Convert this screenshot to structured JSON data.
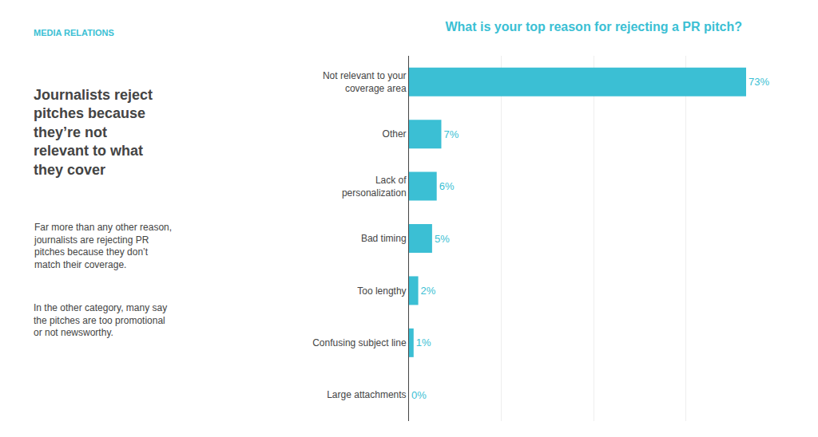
{
  "chart_data": {
    "type": "bar",
    "orientation": "horizontal",
    "title": "What is your top reason for rejecting a PR pitch?",
    "categories": [
      "Not relevant to your\ncoverage area",
      "Other",
      "Lack of\npersonalization",
      "Bad timing",
      "Too lengthy",
      "Confusing subject line",
      "Large attachments"
    ],
    "values": [
      73,
      7,
      6,
      5,
      2,
      1,
      0
    ],
    "value_labels": [
      "73%",
      "7%",
      "6%",
      "5%",
      "2%",
      "1%",
      "0%"
    ],
    "data_labels": true,
    "color": "#3bbfd4",
    "xlim": [
      0,
      80
    ],
    "xticks": [
      0,
      20,
      40,
      60,
      80
    ],
    "grid": true,
    "tick_labels": "y",
    "annotations": [
      "MEDIA RELATIONS",
      "Journalists reject\npitches because\nthey’re not\nrelevant to what\nthey cover",
      "Far more than any other reason,\njournalists are rejecting PR\npitches because they don’t\nmatch their coverage.",
      "In the other category, many say\nthe pitches are too promotional\nor not newsworthy."
    ]
  }
}
